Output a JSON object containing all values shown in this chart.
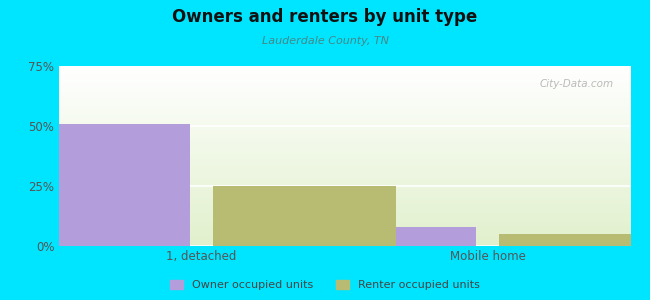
{
  "title": "Owners and renters by unit type",
  "subtitle": "Lauderdale County, TN",
  "categories": [
    "1, detached",
    "Mobile home"
  ],
  "owner_values": [
    51.0,
    8.0
  ],
  "renter_values": [
    25.0,
    5.0
  ],
  "owner_color": "#b39ddb",
  "renter_color": "#b8bc72",
  "background_outer": "#00e5ff",
  "ylim": [
    0,
    75
  ],
  "yticks": [
    0,
    25,
    50,
    75
  ],
  "yticklabels": [
    "0%",
    "25%",
    "50%",
    "75%"
  ],
  "bar_width": 0.32,
  "legend_owner": "Owner occupied units",
  "legend_renter": "Renter occupied units",
  "watermark": "City-Data.com",
  "plot_bg_top": "#f5faf0",
  "plot_bg_bottom": "#e0eecc"
}
